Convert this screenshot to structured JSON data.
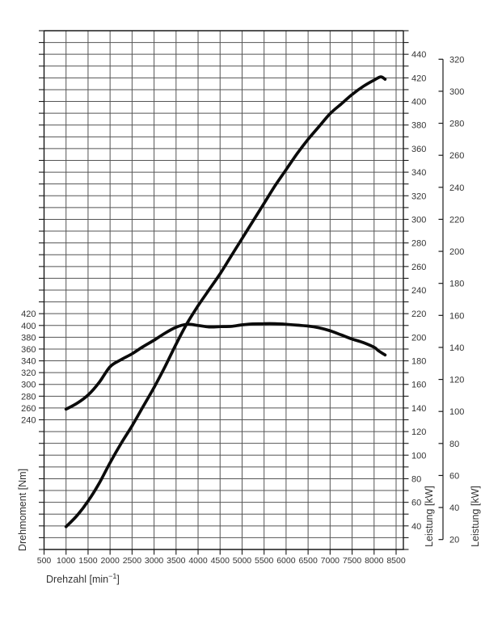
{
  "chart_data": {
    "type": "line",
    "title": "",
    "xlabel": {
      "pre": "Drehzahl [min",
      "sup": "−1",
      "post": "]"
    },
    "x_axis": {
      "range": [
        500,
        8500
      ],
      "tick_step": 500,
      "tick_labels": [
        500,
        1000,
        1500,
        2000,
        2500,
        3000,
        3500,
        4000,
        4500,
        5000,
        5500,
        6000,
        6500,
        7000,
        7500,
        8000,
        8500
      ]
    },
    "axes": {
      "left": {
        "label": "Drehmoment [Nm]",
        "unit": "Nm",
        "tick_labels": [
          420,
          400,
          380,
          360,
          340,
          320,
          300,
          280,
          260,
          240
        ]
      },
      "right_inner": {
        "label": "Leistung [kW]",
        "unit": "kW",
        "range": [
          20,
          460
        ],
        "grid_step": 10,
        "tick_labels": [
          440,
          420,
          400,
          380,
          360,
          340,
          320,
          300,
          280,
          260,
          240,
          220,
          200,
          180,
          160,
          140,
          120,
          100,
          80,
          60,
          40
        ]
      },
      "right_outer": {
        "label": "Leistung [kW]",
        "unit": "kW",
        "range": [
          20,
          320
        ],
        "tick_step": 20,
        "tick_labels": [
          320,
          300,
          280,
          260,
          240,
          220,
          200,
          180,
          160,
          140,
          120,
          100,
          80,
          60,
          40,
          20
        ]
      }
    },
    "grid": true,
    "legend": "none",
    "series": [
      {
        "name": "Drehmoment (torque curve)",
        "axis": "left",
        "unit": "Nm",
        "points": [
          [
            1000,
            258
          ],
          [
            1250,
            268
          ],
          [
            1500,
            282
          ],
          [
            1750,
            303
          ],
          [
            2000,
            330
          ],
          [
            2250,
            342
          ],
          [
            2500,
            352
          ],
          [
            2750,
            364
          ],
          [
            3000,
            375
          ],
          [
            3250,
            387
          ],
          [
            3500,
            397
          ],
          [
            3750,
            402
          ],
          [
            4000,
            400
          ],
          [
            4250,
            397.5
          ],
          [
            4500,
            398
          ],
          [
            4750,
            398.5
          ],
          [
            5000,
            401
          ],
          [
            5250,
            402.5
          ],
          [
            5500,
            403
          ],
          [
            5750,
            403
          ],
          [
            6000,
            402
          ],
          [
            6250,
            400.5
          ],
          [
            6500,
            399
          ],
          [
            6750,
            396
          ],
          [
            7000,
            391
          ],
          [
            7250,
            384
          ],
          [
            7500,
            377
          ],
          [
            7750,
            371
          ],
          [
            8000,
            363
          ],
          [
            8100,
            357
          ],
          [
            8250,
            350
          ]
        ]
      },
      {
        "name": "Leistung (power curve)",
        "axis": "right_outer",
        "unit": "kW",
        "points": [
          [
            1000,
            28
          ],
          [
            1250,
            35
          ],
          [
            1500,
            44
          ],
          [
            1750,
            55
          ],
          [
            2000,
            68
          ],
          [
            2250,
            80
          ],
          [
            2500,
            91
          ],
          [
            2750,
            103
          ],
          [
            3000,
            115
          ],
          [
            3250,
            128
          ],
          [
            3500,
            142
          ],
          [
            3750,
            155
          ],
          [
            4000,
            166
          ],
          [
            4250,
            176
          ],
          [
            4500,
            186
          ],
          [
            4750,
            197
          ],
          [
            5000,
            208
          ],
          [
            5250,
            219
          ],
          [
            5500,
            230
          ],
          [
            5750,
            241
          ],
          [
            6000,
            251
          ],
          [
            6250,
            261
          ],
          [
            6500,
            270
          ],
          [
            6750,
            278
          ],
          [
            7000,
            286
          ],
          [
            7250,
            292
          ],
          [
            7500,
            298
          ],
          [
            7750,
            303
          ],
          [
            8000,
            307
          ],
          [
            8150,
            309
          ],
          [
            8250,
            307.5
          ]
        ]
      }
    ],
    "colors": {
      "curve": "#0b0b0b",
      "grid": "#555555",
      "axis": "#1a1a1a",
      "text": "#333333",
      "background": "#ffffff"
    }
  }
}
